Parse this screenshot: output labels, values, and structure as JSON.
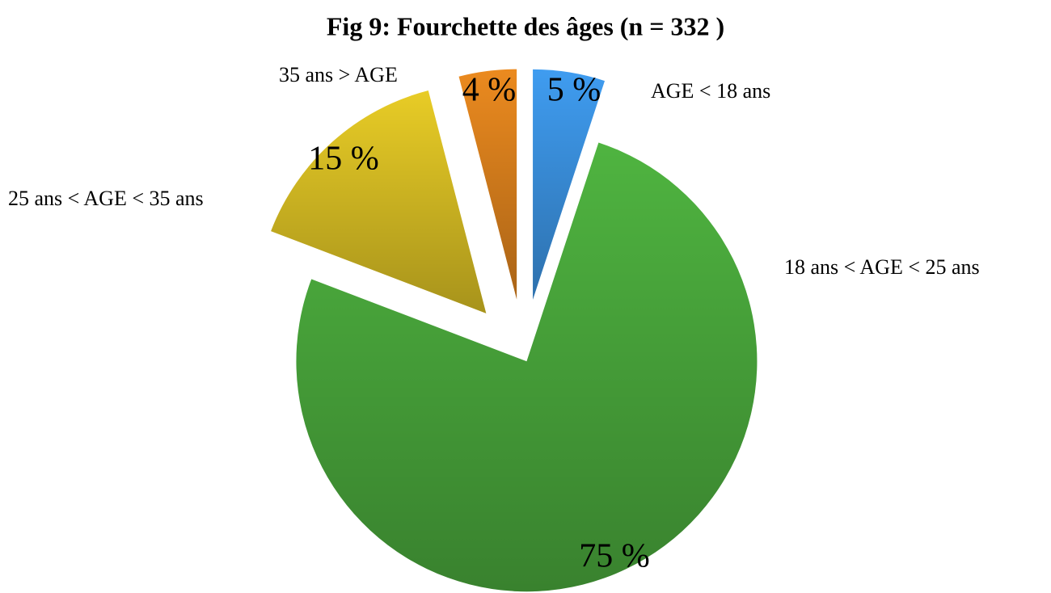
{
  "chart_data": {
    "type": "pie",
    "title": "Fig 9: Fourchette des âges (n = 332 )",
    "categories": [
      "AGE < 18 ans",
      "18 ans < AGE < 25 ans",
      "25 ans < AGE < 35 ans",
      "35 ans > AGE"
    ],
    "values": [
      5,
      75,
      15,
      4
    ],
    "value_labels": [
      "5 %",
      "75 %",
      "15 %",
      "4 %"
    ],
    "colors": [
      "#3f9cf0",
      "#4fb440",
      "#e8cc26",
      "#eb8a1f"
    ]
  }
}
